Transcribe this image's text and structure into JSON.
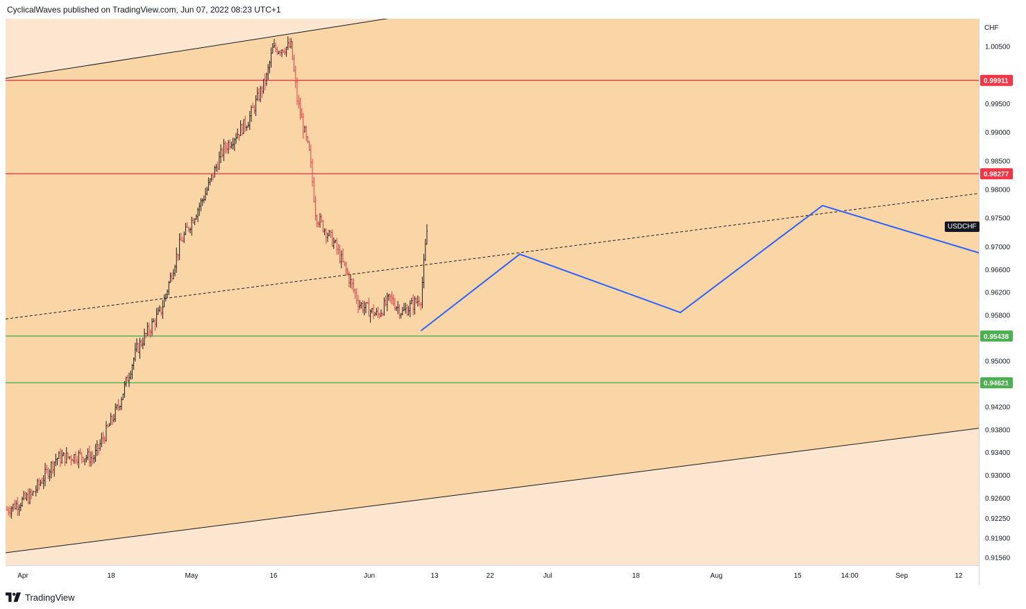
{
  "header": {
    "published_by": "CyclicalWaves published on TradingView.com, Jun 07, 2022 08:23 UTC+1"
  },
  "footer": {
    "brand": "TradingView"
  },
  "colors": {
    "channel_inner": "#fad5a5",
    "channel_outer": "#fde6cf",
    "resistance": "#f23645",
    "support": "#4caf50",
    "projection": "#2962ff",
    "candle_up": "#131722",
    "candle_down": "#f23645"
  },
  "icons": {
    "brand_logo": "tradingview-logo-icon"
  },
  "chart_data": {
    "type": "candlestick",
    "symbol": "USDCHF",
    "currency": "CHF",
    "x_tick_labels": [
      "Apr",
      "18",
      "May",
      "16",
      "Jun",
      "13",
      "22",
      "Jul",
      "18",
      "Aug",
      "15",
      "14:00",
      "Sep",
      "12"
    ],
    "y_tick_labels": [
      "1.00500",
      "0.99500",
      "0.99000",
      "0.98500",
      "0.98000",
      "0.97500",
      "0.97000",
      "0.96600",
      "0.96200",
      "0.95800",
      "0.95000",
      "0.94200",
      "0.93800",
      "0.93400",
      "0.93000",
      "0.92600",
      "0.92250",
      "0.91900",
      "0.91560"
    ],
    "price_range": [
      0.9155,
      1.011
    ],
    "horizontal_levels": [
      {
        "value": 0.99911,
        "label": "0.99911",
        "kind": "resistance"
      },
      {
        "value": 0.98277,
        "label": "0.98277",
        "kind": "resistance"
      },
      {
        "value": 0.95438,
        "label": "0.95438",
        "kind": "support"
      },
      {
        "value": 0.94621,
        "label": "0.94621",
        "kind": "support"
      }
    ],
    "channel": {
      "upper": [
        {
          "x": "2022-03-31",
          "y": 0.9995
        },
        {
          "x": "2022-06-10",
          "y": 1.0115
        }
      ],
      "lower": [
        {
          "x": "2022-03-31",
          "y": 0.9165
        },
        {
          "x": "2022-09-17",
          "y": 0.94
        }
      ]
    },
    "midline": [
      {
        "x": "2022-03-31",
        "y": 0.9574
      },
      {
        "x": "2022-09-17",
        "y": 0.9811
      }
    ],
    "projection_path": [
      {
        "x": "2022-06-06",
        "y": 0.9553
      },
      {
        "x": "2022-06-22",
        "y": 0.9687
      },
      {
        "x": "2022-07-18",
        "y": 0.9585
      },
      {
        "x": "2022-08-10",
        "y": 0.9772
      },
      {
        "x": "2022-09-17",
        "y": 0.9648
      }
    ],
    "price_series": [
      {
        "x": "2022-03-31",
        "close": 0.924
      },
      {
        "x": "2022-04-04",
        "close": 0.9265
      },
      {
        "x": "2022-04-08",
        "close": 0.933
      },
      {
        "x": "2022-04-12",
        "close": 0.9335
      },
      {
        "x": "2022-04-14",
        "close": 0.933
      },
      {
        "x": "2022-04-18",
        "close": 0.942
      },
      {
        "x": "2022-04-21",
        "close": 0.952
      },
      {
        "x": "2022-04-25",
        "close": 0.959
      },
      {
        "x": "2022-04-28",
        "close": 0.9705
      },
      {
        "x": "2022-05-02",
        "close": 0.979
      },
      {
        "x": "2022-05-05",
        "close": 0.987
      },
      {
        "x": "2022-05-09",
        "close": 0.992
      },
      {
        "x": "2022-05-12",
        "close": 0.9995
      },
      {
        "x": "2022-05-13",
        "close": 1.0045
      },
      {
        "x": "2022-05-16",
        "close": 1.005
      },
      {
        "x": "2022-05-17",
        "close": 0.9955
      },
      {
        "x": "2022-05-19",
        "close": 0.986
      },
      {
        "x": "2022-05-20",
        "close": 0.9755
      },
      {
        "x": "2022-05-23",
        "close": 0.9705
      },
      {
        "x": "2022-05-25",
        "close": 0.9655
      },
      {
        "x": "2022-05-27",
        "close": 0.96
      },
      {
        "x": "2022-05-30",
        "close": 0.958
      },
      {
        "x": "2022-06-01",
        "close": 0.961
      },
      {
        "x": "2022-06-03",
        "close": 0.9585
      },
      {
        "x": "2022-06-06",
        "close": 0.961
      },
      {
        "x": "2022-06-07",
        "close": 0.973
      }
    ]
  }
}
